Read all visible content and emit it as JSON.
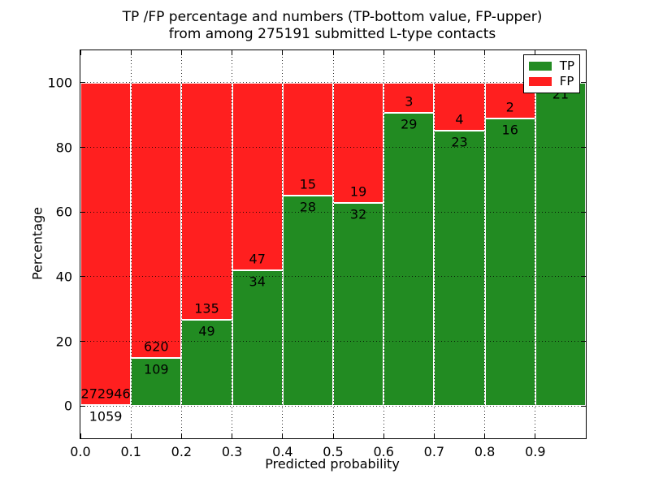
{
  "title": {
    "line1": "TP /FP percentage and numbers (TP-bottom value, FP-upper)",
    "line2": "from among 275191 submitted L-type contacts"
  },
  "axis": {
    "xlabel": "Predicted probability",
    "ylabel": "Percentage"
  },
  "legend": {
    "position": "upper-right",
    "entries": [
      {
        "label": "TP",
        "color": "#228b22"
      },
      {
        "label": "FP",
        "color": "#ff1f1f"
      }
    ]
  },
  "chart_data": {
    "type": "bar",
    "variant": "stacked-percentage-histogram",
    "title": "TP /FP percentage and numbers (TP-bottom value, FP-upper) from among 275191 submitted L-type contacts",
    "total_submitted_contacts": 275191,
    "xlabel": "Predicted probability",
    "ylabel": "Percentage",
    "xlim": [
      0.0,
      1.0
    ],
    "ylim": [
      -10,
      110
    ],
    "x_tick_values": [
      0.0,
      0.1,
      0.2,
      0.3,
      0.4,
      0.5,
      0.6,
      0.7,
      0.8,
      0.9
    ],
    "x_tick_labels": [
      "0.0",
      "0.1",
      "0.2",
      "0.3",
      "0.4",
      "0.5",
      "0.6",
      "0.7",
      "0.8",
      "0.9"
    ],
    "y_tick_values": [
      0,
      20,
      40,
      60,
      80,
      100
    ],
    "y_tick_labels": [
      "0",
      "20",
      "40",
      "60",
      "80",
      "100"
    ],
    "grid_style": "dotted",
    "legend_position": "upper-right",
    "bin_edges": [
      0.0,
      0.1,
      0.2,
      0.3,
      0.4,
      0.5,
      0.6,
      0.7,
      0.8,
      0.9,
      1.0
    ],
    "series": [
      {
        "name": "TP",
        "color": "#228b22",
        "stack_position": "bottom",
        "counts": [
          1059,
          109,
          49,
          34,
          28,
          32,
          29,
          23,
          16,
          21
        ]
      },
      {
        "name": "FP",
        "color": "#ff1f1f",
        "stack_position": "top",
        "counts": [
          272946,
          620,
          135,
          47,
          15,
          19,
          3,
          4,
          2,
          0
        ]
      }
    ],
    "tp_percent_of_bin": [
      0.39,
      14.95,
      26.63,
      41.98,
      65.12,
      62.75,
      90.63,
      85.19,
      88.89,
      100.0
    ]
  }
}
